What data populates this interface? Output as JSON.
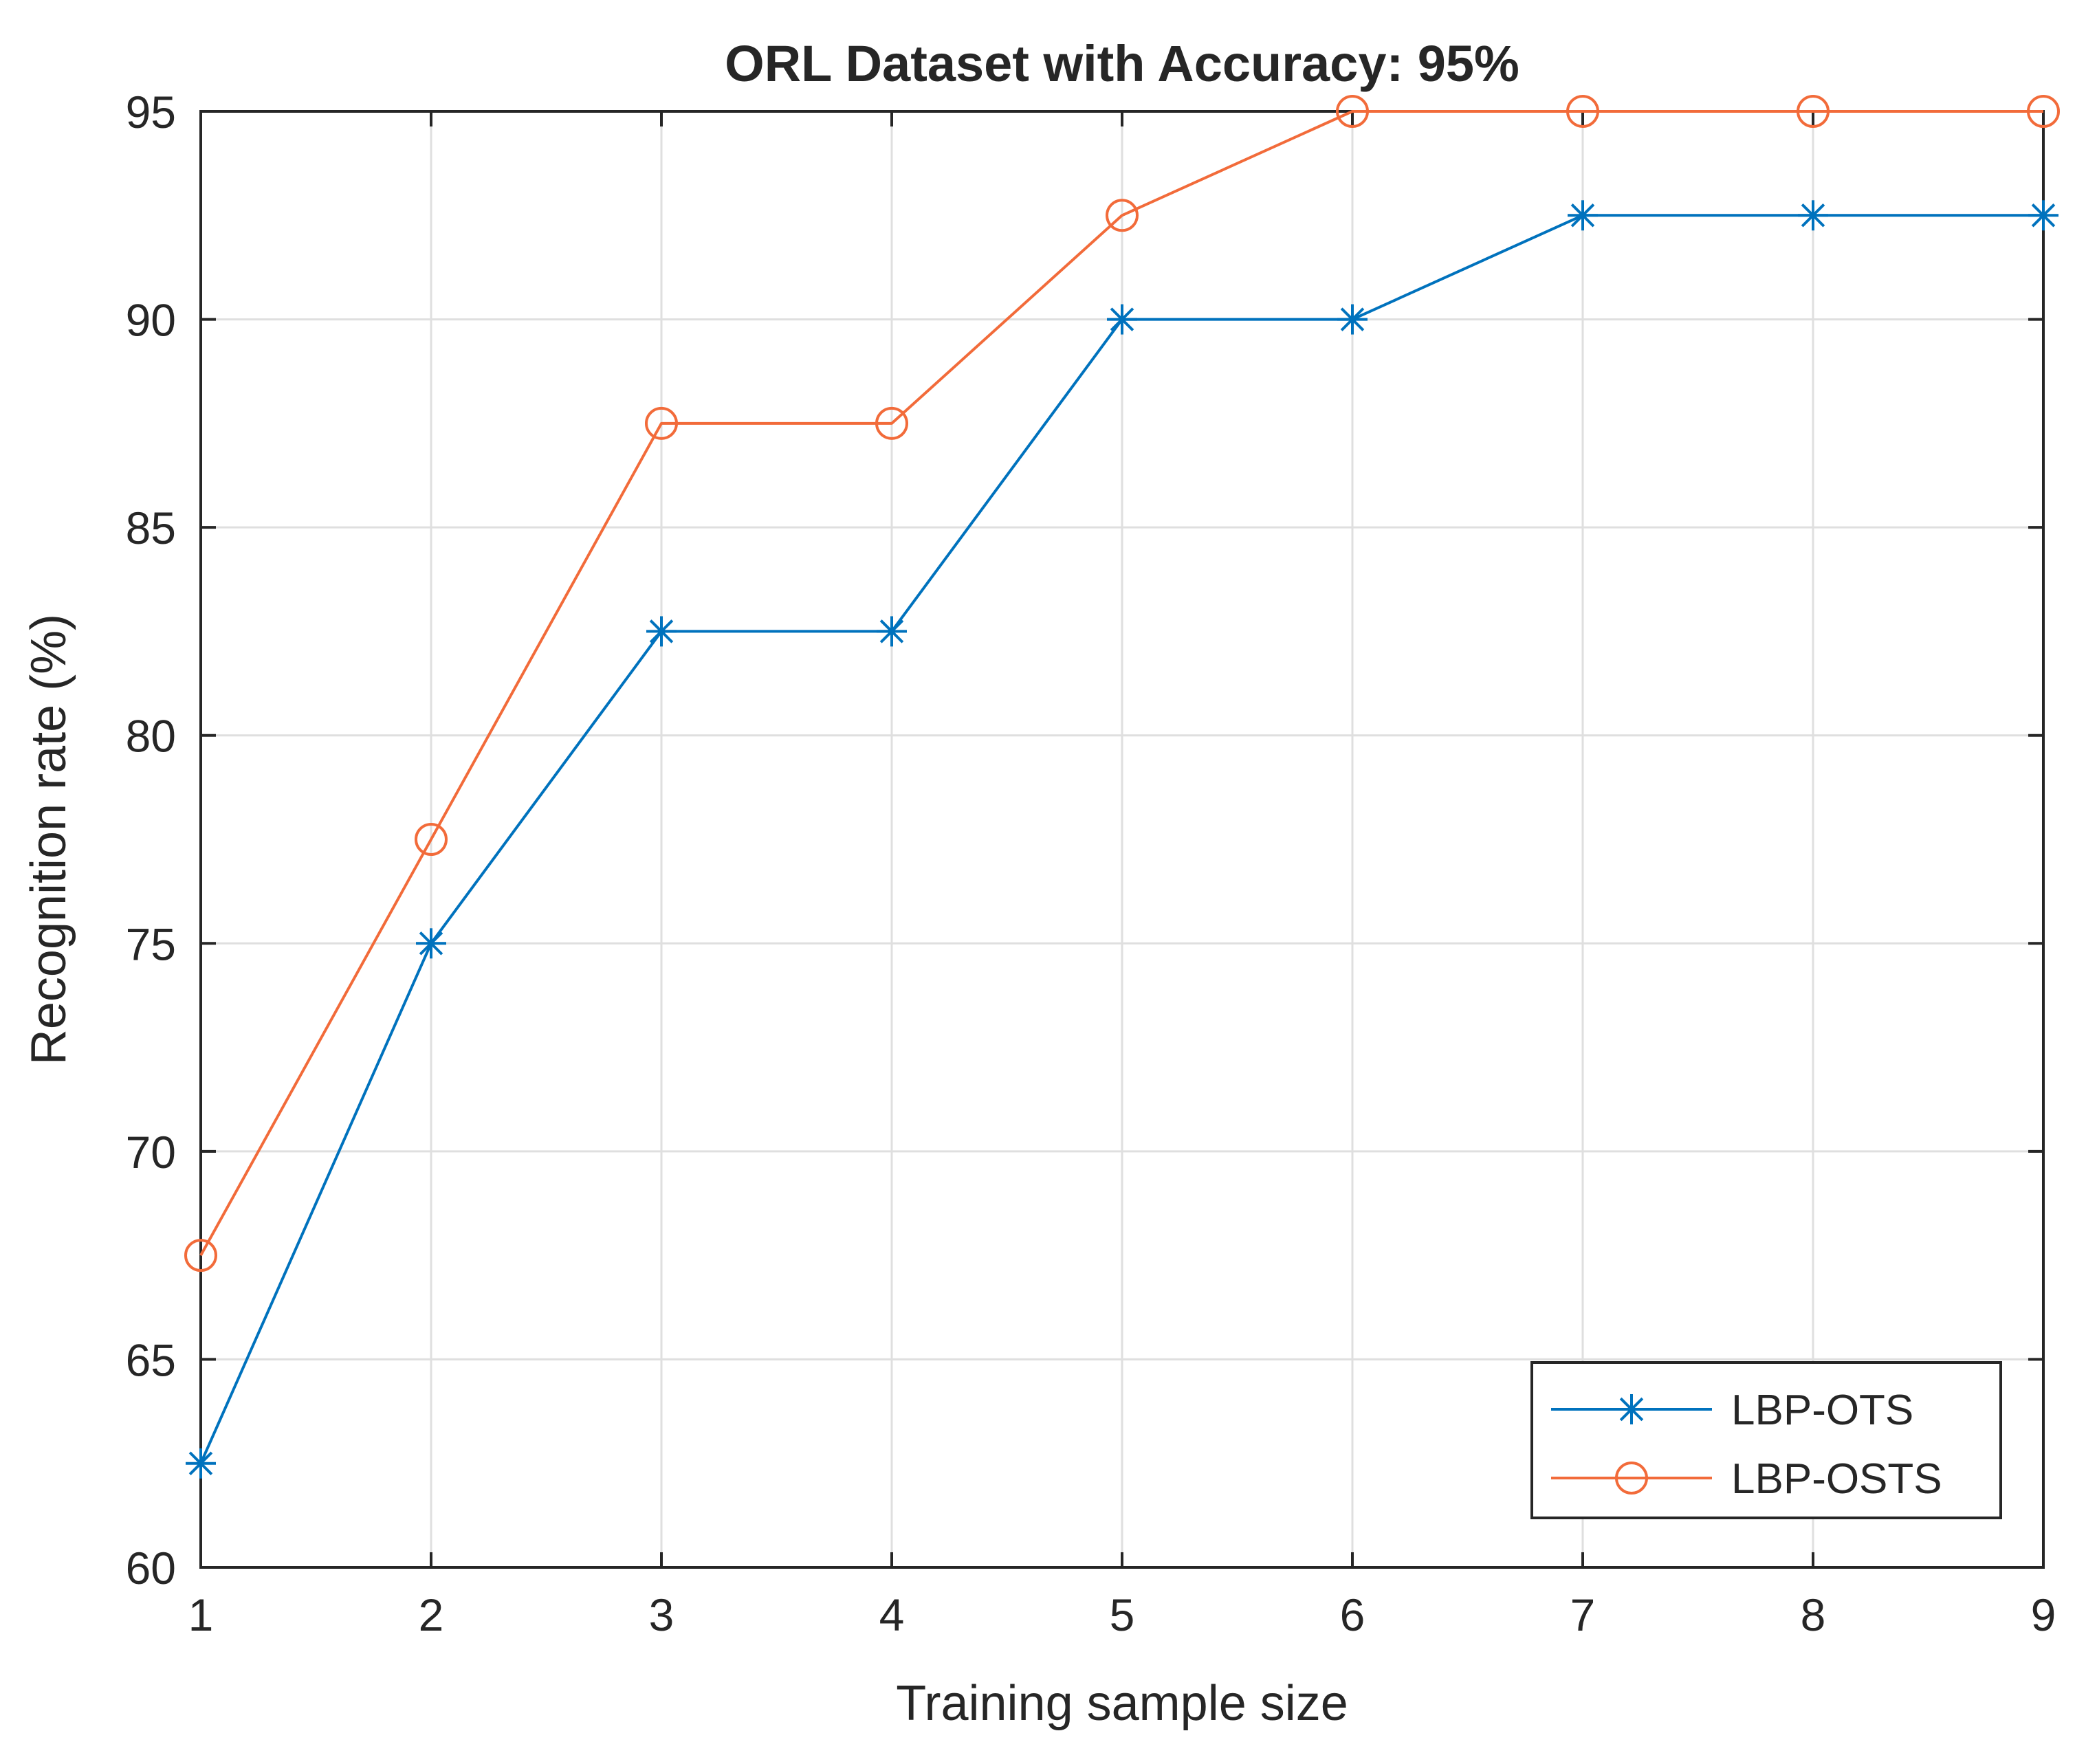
{
  "chart_data": {
    "type": "line",
    "title": "ORL Dataset with Accuracy: 95%",
    "xlabel": "Training sample size",
    "ylabel": "Recognition rate (%)",
    "x": [
      1,
      2,
      3,
      4,
      5,
      6,
      7,
      8,
      9
    ],
    "xlim": [
      1,
      9
    ],
    "ylim": [
      60,
      95
    ],
    "xticks": [
      1,
      2,
      3,
      4,
      5,
      6,
      7,
      8,
      9
    ],
    "yticks": [
      60,
      65,
      70,
      75,
      80,
      85,
      90,
      95
    ],
    "grid": true,
    "legend_position": "bottom-right",
    "series": [
      {
        "name": "LBP-OTS",
        "marker": "asterisk",
        "color": "#0072BD",
        "values": [
          62.5,
          75,
          82.5,
          82.5,
          90,
          90,
          92.5,
          92.5,
          92.5
        ]
      },
      {
        "name": "LBP-OSTS",
        "marker": "circle",
        "color": "#F26B3A",
        "values": [
          67.5,
          77.5,
          87.5,
          87.5,
          92.5,
          95,
          95,
          95,
          95
        ]
      }
    ]
  }
}
